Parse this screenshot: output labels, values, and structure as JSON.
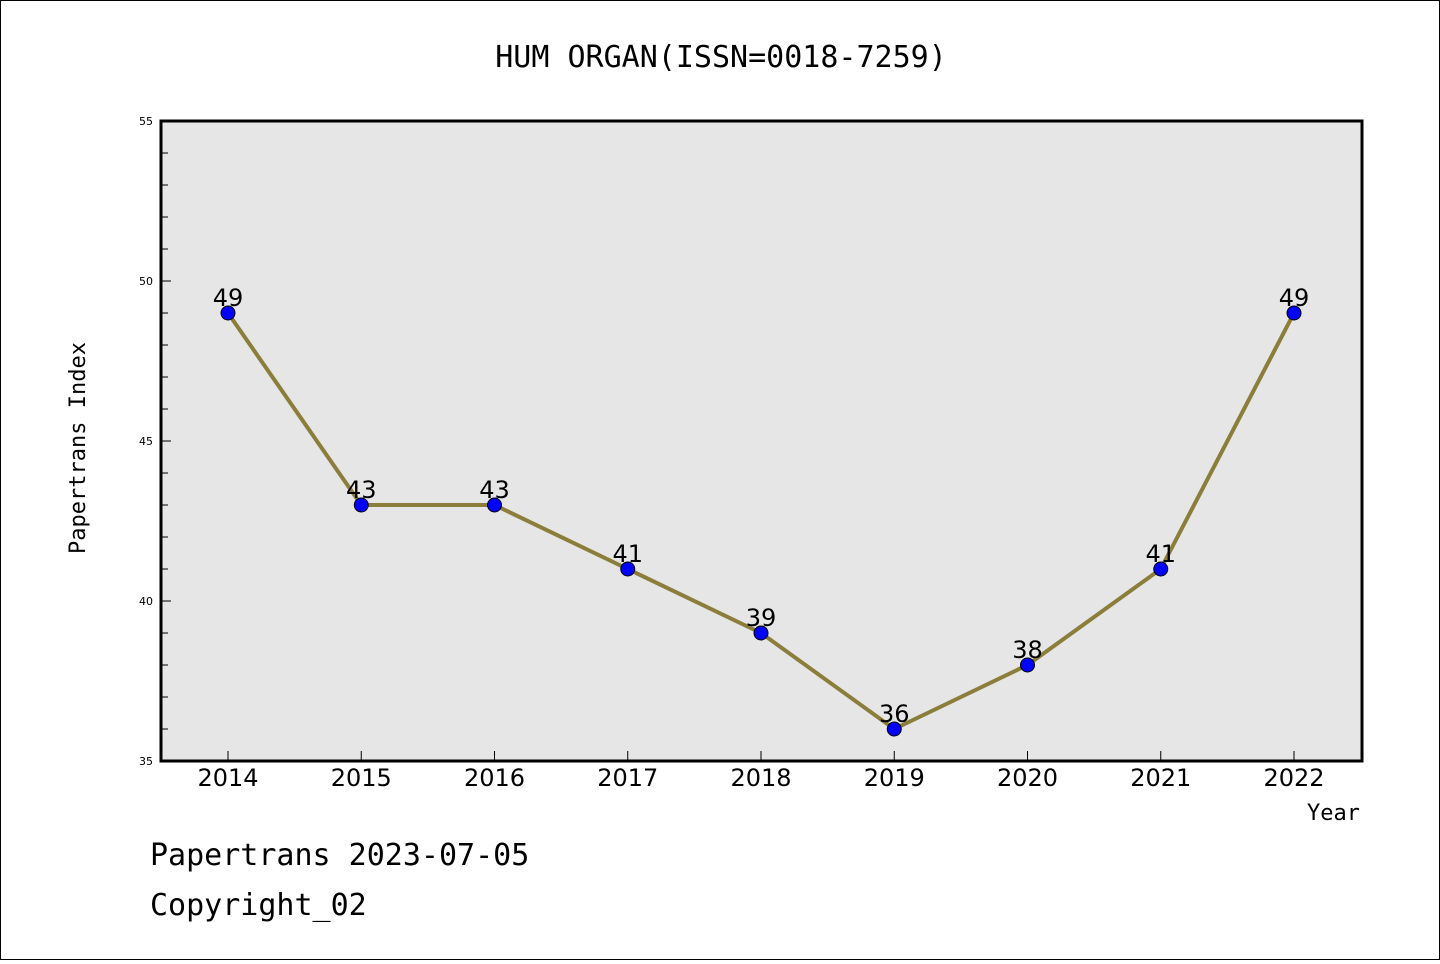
{
  "chart_data": {
    "type": "line",
    "title": "HUM ORGAN(ISSN=0018-7259)",
    "xlabel": "Year",
    "ylabel": "Papertrans Index",
    "categories": [
      "2014",
      "2015",
      "2016",
      "2017",
      "2018",
      "2019",
      "2020",
      "2021",
      "2022"
    ],
    "series": [
      {
        "values": [
          49,
          43,
          43,
          41,
          39,
          36,
          38,
          41,
          49
        ],
        "line_color": "#8b7d3a",
        "marker_color": "#0000ff"
      }
    ],
    "ylim": [
      35,
      55
    ],
    "yticks": [
      "35",
      "40",
      "45",
      "50",
      "55"
    ],
    "data_labels": true,
    "plot_background": "#e6e6e6",
    "grid": false,
    "legend": "none"
  },
  "footer": {
    "line1": "Papertrans 2023-07-05",
    "line2": "Copyright_02"
  }
}
